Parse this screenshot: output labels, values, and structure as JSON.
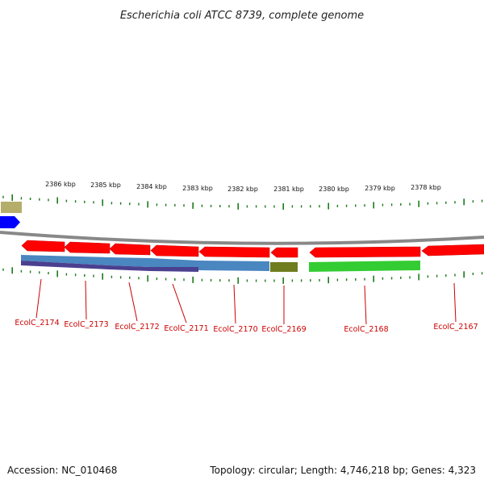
{
  "title": "Escherichia coli ATCC 8739, complete genome",
  "scale_labels": [
    "2386 kbp",
    "2385 kbp",
    "2384 kbp",
    "2383 kbp",
    "2382 kbp",
    "2381 kbp",
    "2380 kbp",
    "2379 kbp",
    "2378 kbp"
  ],
  "genes": [
    {
      "label": "EcolC_2174",
      "strand": "reverse",
      "color": "#ff0000"
    },
    {
      "label": "EcolC_2173",
      "strand": "reverse",
      "color": "#ff0000"
    },
    {
      "label": "EcolC_2172",
      "strand": "reverse",
      "color": "#ff0000"
    },
    {
      "label": "EcolC_2171",
      "strand": "reverse",
      "color": "#ff0000"
    },
    {
      "label": "EcolC_2170",
      "strand": "reverse",
      "color": "#ff0000"
    },
    {
      "label": "EcolC_2169",
      "strand": "reverse",
      "color": "#ff0000"
    },
    {
      "label": "EcolC_2168",
      "strand": "reverse",
      "color": "#ff0000"
    },
    {
      "label": "EcolC_2167",
      "strand": "reverse",
      "color": "#ff0000"
    }
  ],
  "colors": {
    "backbone": "#888888",
    "tick": "#1a7a1a",
    "gene": "#ff0000",
    "forward_gene": "#0000ff",
    "misc_feature": "#b5ae6a",
    "feature_blue": "#4a86c0",
    "feature_purple": "#4b3f8f",
    "feature_olive": "#6f7d1e",
    "feature_green": "#33cc33",
    "label": "#cc0000"
  },
  "footer": {
    "accession": "Accession: NC_010468",
    "summary": "Topology: circular; Length: 4,746,218 bp; Genes: 4,323"
  }
}
